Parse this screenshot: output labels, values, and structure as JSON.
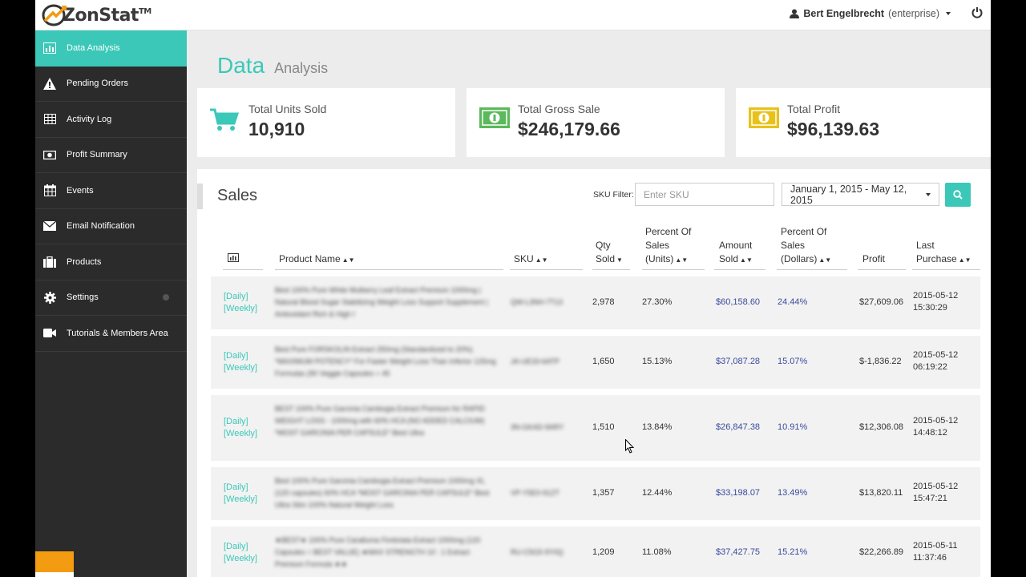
{
  "app": {
    "name": "ZonStat",
    "trademark": "TM"
  },
  "header": {
    "user_name": "Bert Engelbrecht",
    "user_role": "(enterprise)"
  },
  "sidebar": {
    "items": [
      {
        "label": "Data Analysis",
        "icon": "chart-icon",
        "active": true
      },
      {
        "label": "Pending Orders",
        "icon": "warning-icon"
      },
      {
        "label": "Activity Log",
        "icon": "table-icon"
      },
      {
        "label": "Profit Summary",
        "icon": "money-icon"
      },
      {
        "label": "Events",
        "icon": "calendar-icon"
      },
      {
        "label": "Email Notification",
        "icon": "envelope-icon"
      },
      {
        "label": "Products",
        "icon": "briefcase-icon"
      },
      {
        "label": "Settings",
        "icon": "gear-icon"
      },
      {
        "label": "Tutorials & Members Area",
        "icon": "video-icon"
      }
    ]
  },
  "page": {
    "title": "Data",
    "subtitle": "Analysis"
  },
  "stats": [
    {
      "label": "Total Units Sold",
      "value": "10,910",
      "icon": "cart-icon",
      "color": "#3bc8b8"
    },
    {
      "label": "Total Gross Sale",
      "value": "$246,179.66",
      "icon": "money-icon",
      "color": "#5cb85c"
    },
    {
      "label": "Total Profit",
      "value": "$96,139.63",
      "icon": "money-icon",
      "color": "#e8c21a"
    }
  ],
  "sales": {
    "title": "Sales",
    "sku_filter_label": "SKU Filter:",
    "sku_placeholder": "Enter SKU",
    "date_range": "January 1, 2015 - May 12, 2015",
    "columns": {
      "product_name": "Product Name",
      "sku": "SKU",
      "qty_1": "Qty",
      "qty_2": "Sold",
      "pct_units_1": "Percent Of",
      "pct_units_2": "Sales",
      "pct_units_3": "(Units)",
      "amount_1": "Amount",
      "amount_2": "Sold",
      "pct_dollars_1": "Percent Of",
      "pct_dollars_2": "Sales",
      "pct_dollars_3": "(Dollars)",
      "profit": "Profit",
      "last_1": "Last",
      "last_2": "Purchase"
    },
    "rows": [
      {
        "daily": "[Daily]",
        "weekly": "[Weekly]",
        "product": "Best 100% Pure White Mulberry Leaf Extract Premium 1000mg | Natural Blood Sugar Stabilizing Weight Loss Support Supplement | Antioxidant Rich & High I",
        "sku": "QW-L3NH-7T13",
        "qty": "2,978",
        "pct_units": "27.30%",
        "amount": "$60,158.60",
        "pct_dollars": "24.44%",
        "profit": "$27,609.06",
        "date": "2015-05-12",
        "time": "15:30:29"
      },
      {
        "daily": "[Daily]",
        "weekly": "[Weekly]",
        "product": "Best Pure FORSKOLIN Extract 250mg (Standardized to 20%) *MAXIMUM POTENCY* For Faster Weight Loss Than Inferior 125mg Formulas (90 Veggie Capsules = 45",
        "sku": "JA-UE33-6ATP",
        "qty": "1,650",
        "pct_units": "15.13%",
        "amount": "$37,087.28",
        "pct_dollars": "15.07%",
        "profit": "$-1,836.22",
        "date": "2015-05-12",
        "time": "06:19:22"
      },
      {
        "daily": "[Daily]",
        "weekly": "[Weekly]",
        "product": "BEST 100% Pure Garcinia Cambogia Extract Premium for RAPID WEIGHT LOSS - 1000mg with 60% HCA (NO ADDED CALCIUM) *MOST GARCINIA PER CAPSULE* Best Ultra",
        "sku": "3N-GKAD-9ARY",
        "qty": "1,510",
        "pct_units": "13.84%",
        "amount": "$26,847.38",
        "pct_dollars": "10.91%",
        "profit": "$12,306.08",
        "date": "2015-05-12",
        "time": "14:48:12"
      },
      {
        "daily": "[Daily]",
        "weekly": "[Weekly]",
        "product": "Best 100% Pure Garcinia Cambogia Extract Premium 1000mg XL (120 capsules) 60% HCA *MOST GARCINIA PER CAPSULE* Best Ultra Slim 100% Natural Weight Loss",
        "sku": "VP-Y5E0-91ZT",
        "qty": "1,357",
        "pct_units": "12.44%",
        "amount": "$33,198.07",
        "pct_dollars": "13.49%",
        "profit": "$13,820.11",
        "date": "2015-05-12",
        "time": "15:47:21"
      },
      {
        "daily": "[Daily]",
        "weekly": "[Weekly]",
        "product": "★BEST★ 100% Pure Caralluma Fimbriata Extract 1000mg (120 Capsules = BEST VALUE) ★MAX STRENGTH 10 : 1 Extract Premium Formula ★★",
        "sku": "RU-C5G5-9Y0Q",
        "qty": "1,209",
        "pct_units": "11.08%",
        "amount": "$37,427.75",
        "pct_dollars": "15.21%",
        "profit": "$22,266.89",
        "date": "2015-05-11",
        "time": "11:37:46"
      }
    ]
  }
}
